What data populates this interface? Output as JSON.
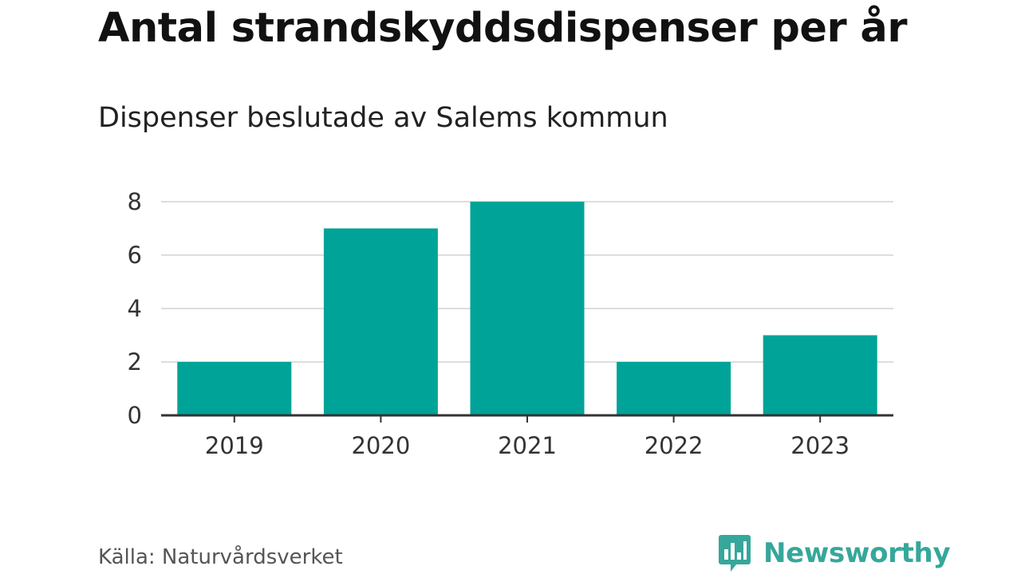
{
  "header": {
    "title": "Antal strandskyddsdispenser per år",
    "subtitle": "Dispenser beslutade av Salems kommun"
  },
  "footer": {
    "source": "Källa: Naturvårdsverket",
    "brand": "Newsworthy",
    "brand_icon": "newsworthy-logo-icon"
  },
  "colors": {
    "bar": "#00a398",
    "grid": "#dddddd",
    "axis": "#333333",
    "brand": "#36a79b"
  },
  "chart_data": {
    "type": "bar",
    "title": "Antal strandskyddsdispenser per år",
    "subtitle": "Dispenser beslutade av Salems kommun",
    "xlabel": "",
    "ylabel": "",
    "categories": [
      "2019",
      "2020",
      "2021",
      "2022",
      "2023"
    ],
    "values": [
      2,
      7,
      8,
      2,
      3
    ],
    "ylim": [
      0,
      8
    ],
    "yticks": [
      "0",
      "2",
      "4",
      "6",
      "8"
    ],
    "grid": true,
    "legend": "none"
  }
}
